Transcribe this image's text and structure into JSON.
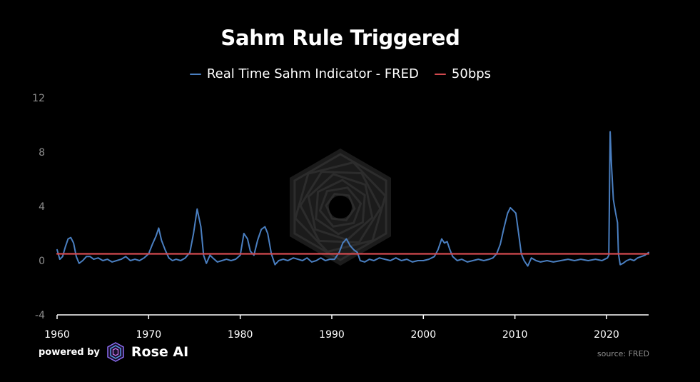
{
  "chart_data": {
    "type": "line",
    "title": "Sahm Rule Triggered",
    "xlabel": "",
    "ylabel": "",
    "xlim": [
      1960,
      2024.6
    ],
    "ylim": [
      -4,
      12
    ],
    "x_ticks": [
      "1960",
      "1970",
      "1980",
      "1990",
      "2000",
      "2010",
      "2020"
    ],
    "y_ticks": [
      "12",
      "8",
      "4",
      "0",
      "-4"
    ],
    "grid": false,
    "legend_position": "top-center",
    "series": [
      {
        "name": "Real Time Sahm Indicator - FRED",
        "color": "#4a7fc1",
        "points": [
          [
            1960.0,
            0.8
          ],
          [
            1960.3,
            0.1
          ],
          [
            1960.6,
            0.3
          ],
          [
            1960.9,
            1.0
          ],
          [
            1961.2,
            1.6
          ],
          [
            1961.5,
            1.7
          ],
          [
            1961.8,
            1.3
          ],
          [
            1962.1,
            0.3
          ],
          [
            1962.4,
            -0.2
          ],
          [
            1962.8,
            0.0
          ],
          [
            1963.2,
            0.3
          ],
          [
            1963.6,
            0.3
          ],
          [
            1964.0,
            0.1
          ],
          [
            1964.5,
            0.2
          ],
          [
            1965.0,
            0.0
          ],
          [
            1965.5,
            0.1
          ],
          [
            1966.0,
            -0.1
          ],
          [
            1966.5,
            0.0
          ],
          [
            1967.0,
            0.1
          ],
          [
            1967.5,
            0.3
          ],
          [
            1968.0,
            0.0
          ],
          [
            1968.5,
            0.1
          ],
          [
            1969.0,
            0.0
          ],
          [
            1969.5,
            0.2
          ],
          [
            1970.0,
            0.5
          ],
          [
            1970.4,
            1.2
          ],
          [
            1970.8,
            1.8
          ],
          [
            1971.1,
            2.4
          ],
          [
            1971.4,
            1.5
          ],
          [
            1971.8,
            0.8
          ],
          [
            1972.2,
            0.2
          ],
          [
            1972.6,
            0.0
          ],
          [
            1973.0,
            0.1
          ],
          [
            1973.5,
            0.0
          ],
          [
            1974.0,
            0.2
          ],
          [
            1974.5,
            0.6
          ],
          [
            1974.9,
            2.0
          ],
          [
            1975.3,
            3.8
          ],
          [
            1975.7,
            2.5
          ],
          [
            1976.0,
            0.4
          ],
          [
            1976.3,
            -0.2
          ],
          [
            1976.7,
            0.4
          ],
          [
            1977.0,
            0.2
          ],
          [
            1977.5,
            -0.1
          ],
          [
            1978.0,
            0.0
          ],
          [
            1978.5,
            0.1
          ],
          [
            1979.0,
            0.0
          ],
          [
            1979.5,
            0.1
          ],
          [
            1980.0,
            0.4
          ],
          [
            1980.4,
            2.0
          ],
          [
            1980.8,
            1.6
          ],
          [
            1981.1,
            0.7
          ],
          [
            1981.5,
            0.4
          ],
          [
            1981.9,
            1.5
          ],
          [
            1982.3,
            2.3
          ],
          [
            1982.7,
            2.5
          ],
          [
            1983.0,
            2.0
          ],
          [
            1983.4,
            0.5
          ],
          [
            1983.8,
            -0.3
          ],
          [
            1984.2,
            0.0
          ],
          [
            1984.7,
            0.1
          ],
          [
            1985.2,
            0.0
          ],
          [
            1985.8,
            0.2
          ],
          [
            1986.3,
            0.1
          ],
          [
            1986.8,
            0.0
          ],
          [
            1987.3,
            0.2
          ],
          [
            1987.8,
            -0.1
          ],
          [
            1988.3,
            0.0
          ],
          [
            1988.8,
            0.2
          ],
          [
            1989.3,
            0.0
          ],
          [
            1989.8,
            0.1
          ],
          [
            1990.3,
            0.1
          ],
          [
            1990.8,
            0.6
          ],
          [
            1991.2,
            1.3
          ],
          [
            1991.6,
            1.6
          ],
          [
            1992.0,
            1.1
          ],
          [
            1992.4,
            0.8
          ],
          [
            1992.8,
            0.6
          ],
          [
            1993.1,
            0.0
          ],
          [
            1993.6,
            -0.1
          ],
          [
            1994.1,
            0.1
          ],
          [
            1994.6,
            0.0
          ],
          [
            1995.2,
            0.2
          ],
          [
            1995.8,
            0.1
          ],
          [
            1996.4,
            0.0
          ],
          [
            1997.0,
            0.2
          ],
          [
            1997.6,
            0.0
          ],
          [
            1998.2,
            0.1
          ],
          [
            1998.8,
            -0.1
          ],
          [
            1999.4,
            0.0
          ],
          [
            2000.0,
            0.0
          ],
          [
            2000.6,
            0.1
          ],
          [
            2001.2,
            0.3
          ],
          [
            2001.6,
            0.8
          ],
          [
            2002.0,
            1.6
          ],
          [
            2002.3,
            1.3
          ],
          [
            2002.6,
            1.4
          ],
          [
            2002.9,
            0.8
          ],
          [
            2003.2,
            0.3
          ],
          [
            2003.7,
            0.0
          ],
          [
            2004.2,
            0.1
          ],
          [
            2004.8,
            -0.1
          ],
          [
            2005.4,
            0.0
          ],
          [
            2006.0,
            0.1
          ],
          [
            2006.6,
            0.0
          ],
          [
            2007.2,
            0.1
          ],
          [
            2007.6,
            0.2
          ],
          [
            2008.0,
            0.5
          ],
          [
            2008.4,
            1.2
          ],
          [
            2008.8,
            2.4
          ],
          [
            2009.2,
            3.5
          ],
          [
            2009.5,
            3.9
          ],
          [
            2009.8,
            3.7
          ],
          [
            2010.1,
            3.5
          ],
          [
            2010.4,
            2.0
          ],
          [
            2010.7,
            0.5
          ],
          [
            2011.0,
            0.0
          ],
          [
            2011.4,
            -0.4
          ],
          [
            2011.8,
            0.2
          ],
          [
            2012.3,
            0.0
          ],
          [
            2012.8,
            -0.1
          ],
          [
            2013.5,
            0.0
          ],
          [
            2014.2,
            -0.1
          ],
          [
            2015.0,
            0.0
          ],
          [
            2015.8,
            0.1
          ],
          [
            2016.5,
            0.0
          ],
          [
            2017.2,
            0.1
          ],
          [
            2018.0,
            0.0
          ],
          [
            2018.8,
            0.1
          ],
          [
            2019.5,
            0.0
          ],
          [
            2020.1,
            0.2
          ],
          [
            2020.25,
            0.4
          ],
          [
            2020.4,
            9.5
          ],
          [
            2020.55,
            7.0
          ],
          [
            2020.75,
            4.5
          ],
          [
            2021.0,
            3.5
          ],
          [
            2021.2,
            2.8
          ],
          [
            2021.3,
            0.5
          ],
          [
            2021.5,
            -0.3
          ],
          [
            2021.8,
            -0.2
          ],
          [
            2022.2,
            0.0
          ],
          [
            2022.6,
            0.1
          ],
          [
            2023.0,
            0.0
          ],
          [
            2023.4,
            0.2
          ],
          [
            2023.8,
            0.3
          ],
          [
            2024.2,
            0.4
          ],
          [
            2024.6,
            0.6
          ]
        ]
      },
      {
        "name": "50bps",
        "color": "#d24a4f",
        "points": [
          [
            1960.0,
            0.5
          ],
          [
            2024.6,
            0.5
          ]
        ]
      }
    ]
  },
  "footer": {
    "powered_by": "powered by",
    "brand": "Rose AI",
    "source": "source: FRED"
  },
  "colors": {
    "background": "#000000",
    "axis": "#ffffff",
    "tick_text_y": "#8e8e8e",
    "watermark": "#1f1f1f"
  },
  "icons": {
    "watermark": "hexagon-spiral-icon",
    "brand_logo": "rose-ai-logo-icon"
  }
}
